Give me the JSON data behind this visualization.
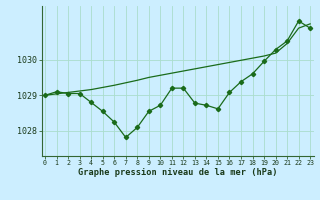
{
  "x": [
    0,
    1,
    2,
    3,
    4,
    5,
    6,
    7,
    8,
    9,
    10,
    11,
    12,
    13,
    14,
    15,
    16,
    17,
    18,
    19,
    20,
    21,
    22,
    23
  ],
  "y_main": [
    1029.0,
    1029.1,
    1029.05,
    1029.05,
    1028.8,
    1028.55,
    1028.25,
    1027.82,
    1028.1,
    1028.55,
    1028.72,
    1029.2,
    1029.2,
    1028.78,
    1028.72,
    1028.62,
    1029.08,
    1029.38,
    1029.6,
    1029.95,
    1030.28,
    1030.52,
    1031.08,
    1030.88
  ],
  "y_trend": [
    1029.0,
    1029.04,
    1029.08,
    1029.12,
    1029.16,
    1029.22,
    1029.28,
    1029.35,
    1029.42,
    1029.5,
    1029.56,
    1029.62,
    1029.68,
    1029.74,
    1029.8,
    1029.86,
    1029.92,
    1029.98,
    1030.04,
    1030.1,
    1030.18,
    1030.45,
    1030.88,
    1031.0
  ],
  "line_color": "#1a6b1a",
  "bg_color": "#cceeff",
  "grid_major_color": "#aaddcc",
  "grid_minor_color": "#cceedd",
  "xlabel": "Graphe pression niveau de la mer (hPa)",
  "yticks": [
    1028,
    1029,
    1030
  ],
  "ylim": [
    1027.3,
    1031.5
  ],
  "xlim": [
    -0.3,
    23.3
  ]
}
